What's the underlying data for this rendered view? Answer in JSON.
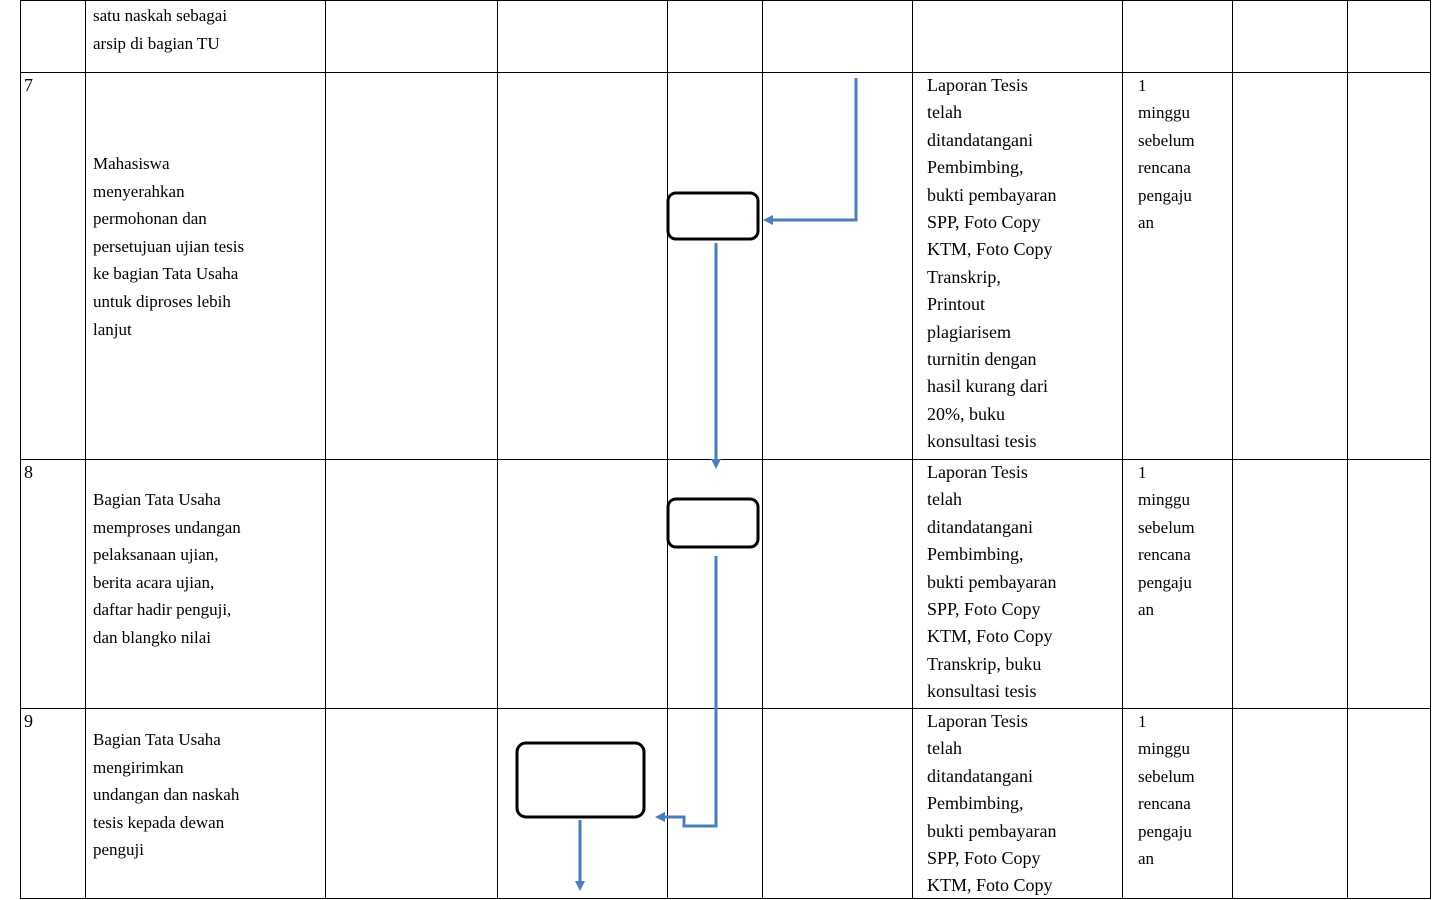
{
  "colors": {
    "arrow": "#4a7ebb",
    "border": "#000000"
  },
  "top_row": {
    "activity": "satu naskah sebagai\narsip di bagian TU"
  },
  "rows": [
    {
      "no": "7",
      "activity": "Mahasiswa\nmenyerahkan\npermohonan dan\npersetujuan ujian tesis\nke bagian Tata Usaha\nuntuk diproses lebih\nlanjut",
      "kelengkapan": "Laporan Tesis\ntelah\nditandatangani\nPembimbing,\nbukti pembayaran\nSPP, Foto Copy\nKTM, Foto Copy\nTranskrip,\nPrintout\nplagiarisem\nturnitin dengan\nhasil kurang dari\n20%, buku\nkonsultasi tesis",
      "waktu": "1\nminggu\nsebelum\nrencana\npengaju\nan"
    },
    {
      "no": "8",
      "activity": "Bagian Tata Usaha\nmemproses undangan\npelaksanaan ujian,\nberita acara ujian,\ndaftar hadir penguji,\ndan blangko nilai",
      "kelengkapan": "Laporan Tesis\ntelah\nditandatangani\nPembimbing,\nbukti pembayaran\nSPP, Foto Copy\nKTM, Foto Copy\nTranskrip,  buku\nkonsultasi tesis",
      "waktu": "1\nminggu\nsebelum\nrencana\npengaju\nan"
    },
    {
      "no": "9",
      "activity": "Bagian Tata Usaha\nmengirimkan\nundangan dan naskah\ntesis kepada dewan\npenguji",
      "kelengkapan": "Laporan Tesis\ntelah\nditandatangani\nPembimbing,\nbukti pembayaran\nSPP, Foto Copy\nKTM, Foto Copy",
      "waktu": "1\nminggu\nsebelum\nrencana\npengaju\nan"
    }
  ]
}
